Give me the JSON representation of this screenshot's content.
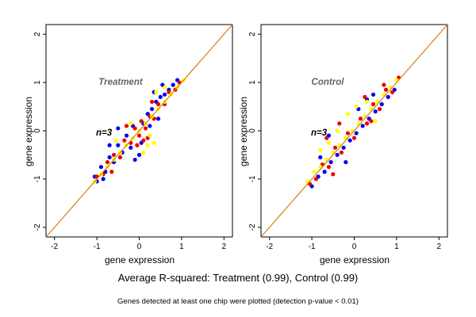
{
  "footer": {
    "summary": "Average R-squared: Treatment (0.99), Control (0.99)",
    "note": "Genes detected at least one chip were plotted (detection p-value < 0.01)"
  },
  "colors": {
    "diagonal": "#d4800a",
    "series": [
      "#0000ee",
      "#ee0000",
      "#ffff00"
    ]
  },
  "chart_data": [
    {
      "type": "scatter",
      "title": "Treatment",
      "annotation": "n=3",
      "xlabel": "gene expression",
      "ylabel": "gene expression",
      "xlim": [
        -2.2,
        2.2
      ],
      "ylim": [
        -2.2,
        2.2
      ],
      "xticks": [
        -2,
        -1,
        0,
        1,
        2
      ],
      "yticks": [
        -2,
        -1,
        0,
        1,
        2
      ],
      "reference_line": "y = x",
      "series_colors": [
        "#0000ee",
        "#ee0000",
        "#ffff00"
      ],
      "series": [
        {
          "color": "#0000ee",
          "points": [
            [
              -1.0,
              -1.05
            ],
            [
              -0.9,
              -0.75
            ],
            [
              -0.8,
              -0.85
            ],
            [
              -0.7,
              -0.55
            ],
            [
              -0.6,
              -0.65
            ],
            [
              -0.5,
              -0.3
            ],
            [
              -0.4,
              -0.45
            ],
            [
              -0.3,
              -0.1
            ],
            [
              -0.2,
              -0.35
            ],
            [
              -0.5,
              0.05
            ],
            [
              -0.7,
              -0.3
            ],
            [
              0.1,
              0.15
            ],
            [
              0.2,
              0.35
            ],
            [
              0.3,
              0.45
            ],
            [
              0.4,
              0.6
            ],
            [
              0.5,
              0.7
            ],
            [
              0.6,
              0.75
            ],
            [
              0.7,
              0.85
            ],
            [
              0.8,
              0.95
            ],
            [
              0.35,
              0.8
            ],
            [
              0.55,
              0.95
            ],
            [
              -0.15,
              0.1
            ],
            [
              0.05,
              -0.25
            ],
            [
              0.0,
              -0.5
            ],
            [
              -0.1,
              -0.6
            ],
            [
              0.9,
              1.05
            ],
            [
              -1.05,
              -0.95
            ],
            [
              -0.85,
              -1.0
            ],
            [
              0.25,
              0.1
            ],
            [
              0.45,
              0.25
            ]
          ]
        },
        {
          "color": "#ee0000",
          "points": [
            [
              -1.0,
              -0.95
            ],
            [
              -0.85,
              -0.9
            ],
            [
              -0.75,
              -0.65
            ],
            [
              -0.6,
              -0.5
            ],
            [
              -0.45,
              -0.55
            ],
            [
              -0.35,
              -0.2
            ],
            [
              -0.2,
              -0.25
            ],
            [
              -0.1,
              0.05
            ],
            [
              0.0,
              -0.1
            ],
            [
              0.15,
              0.05
            ],
            [
              0.25,
              0.3
            ],
            [
              0.35,
              0.25
            ],
            [
              0.45,
              0.55
            ],
            [
              0.6,
              0.55
            ],
            [
              0.7,
              0.8
            ],
            [
              0.85,
              0.85
            ],
            [
              -0.05,
              -0.3
            ],
            [
              0.1,
              -0.2
            ],
            [
              0.2,
              -0.15
            ],
            [
              -0.3,
              0.1
            ],
            [
              0.3,
              0.6
            ],
            [
              0.95,
              1.0
            ],
            [
              -0.65,
              -0.85
            ],
            [
              0.05,
              0.2
            ]
          ]
        },
        {
          "color": "#ffff00",
          "points": [
            [
              -1.05,
              -1.05
            ],
            [
              -0.9,
              -0.9
            ],
            [
              -0.75,
              -0.75
            ],
            [
              -0.6,
              -0.6
            ],
            [
              -0.45,
              -0.45
            ],
            [
              -0.3,
              -0.3
            ],
            [
              -0.15,
              -0.15
            ],
            [
              0.0,
              0.0
            ],
            [
              0.15,
              0.15
            ],
            [
              0.3,
              0.3
            ],
            [
              0.45,
              0.45
            ],
            [
              0.6,
              0.6
            ],
            [
              0.75,
              0.75
            ],
            [
              0.9,
              0.9
            ],
            [
              1.05,
              1.05
            ],
            [
              0.2,
              -0.3
            ],
            [
              0.35,
              -0.25
            ],
            [
              0.4,
              0.8
            ],
            [
              0.6,
              0.9
            ],
            [
              -0.2,
              0.15
            ],
            [
              -0.55,
              -0.2
            ],
            [
              0.1,
              -0.45
            ],
            [
              0.25,
              -0.1
            ]
          ]
        }
      ]
    },
    {
      "type": "scatter",
      "title": "Control",
      "annotation": "n=3",
      "xlabel": "gene expression",
      "ylabel": "gene expression",
      "xlim": [
        -2.2,
        2.2
      ],
      "ylim": [
        -2.2,
        2.2
      ],
      "xticks": [
        -2,
        -1,
        0,
        1,
        2
      ],
      "yticks": [
        -2,
        -1,
        0,
        1,
        2
      ],
      "reference_line": "y = x",
      "series_colors": [
        "#0000ee",
        "#ee0000",
        "#ffff00"
      ],
      "series": [
        {
          "color": "#0000ee",
          "points": [
            [
              -1.0,
              -1.15
            ],
            [
              -0.85,
              -0.95
            ],
            [
              -0.7,
              -0.85
            ],
            [
              -0.55,
              -0.65
            ],
            [
              -0.4,
              -0.5
            ],
            [
              -0.25,
              -0.35
            ],
            [
              -0.1,
              -0.2
            ],
            [
              0.05,
              -0.05
            ],
            [
              0.2,
              0.1
            ],
            [
              0.35,
              0.25
            ],
            [
              0.5,
              0.4
            ],
            [
              0.65,
              0.55
            ],
            [
              0.8,
              0.7
            ],
            [
              0.95,
              0.85
            ],
            [
              0.3,
              0.65
            ],
            [
              0.45,
              0.75
            ],
            [
              -0.6,
              -0.1
            ],
            [
              -0.8,
              -0.55
            ],
            [
              0.1,
              0.45
            ],
            [
              -0.2,
              -0.65
            ]
          ]
        },
        {
          "color": "#ee0000",
          "points": [
            [
              -1.05,
              -1.1
            ],
            [
              -0.9,
              -1.0
            ],
            [
              -0.75,
              -0.7
            ],
            [
              -0.6,
              -0.75
            ],
            [
              -0.45,
              -0.35
            ],
            [
              -0.3,
              -0.45
            ],
            [
              -0.15,
              -0.05
            ],
            [
              0.0,
              -0.15
            ],
            [
              0.15,
              0.25
            ],
            [
              0.3,
              0.15
            ],
            [
              0.45,
              0.55
            ],
            [
              0.6,
              0.45
            ],
            [
              0.75,
              0.85
            ],
            [
              0.9,
              0.8
            ],
            [
              1.05,
              1.1
            ],
            [
              -0.35,
              0.15
            ],
            [
              0.25,
              0.7
            ],
            [
              -0.5,
              -0.9
            ],
            [
              0.4,
              0.2
            ],
            [
              -0.65,
              -0.15
            ],
            [
              0.7,
              0.95
            ]
          ]
        },
        {
          "color": "#ffff00",
          "points": [
            [
              -1.1,
              -1.05
            ],
            [
              -0.95,
              -0.85
            ],
            [
              -0.8,
              -0.75
            ],
            [
              -0.65,
              -0.6
            ],
            [
              -0.5,
              -0.45
            ],
            [
              -0.35,
              -0.3
            ],
            [
              -0.2,
              -0.15
            ],
            [
              -0.05,
              0.0
            ],
            [
              0.1,
              0.15
            ],
            [
              0.25,
              0.3
            ],
            [
              0.4,
              0.45
            ],
            [
              0.55,
              0.6
            ],
            [
              0.7,
              0.75
            ],
            [
              0.85,
              0.9
            ],
            [
              1.0,
              1.05
            ],
            [
              -0.15,
              0.35
            ],
            [
              0.05,
              0.5
            ],
            [
              -0.4,
              0.0
            ],
            [
              -0.6,
              -0.25
            ],
            [
              0.3,
              0.6
            ],
            [
              -0.8,
              -0.4
            ],
            [
              0.5,
              0.2
            ]
          ]
        }
      ]
    }
  ]
}
